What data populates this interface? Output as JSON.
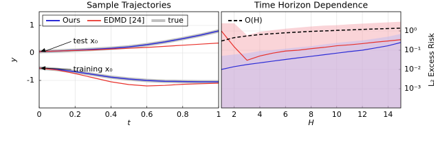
{
  "chart_data": [
    {
      "type": "line",
      "title": "Sample Trajectories",
      "x_label": "t",
      "y_label": "y",
      "x": [
        0,
        0.1,
        0.2,
        0.3,
        0.4,
        0.5,
        0.6,
        0.7,
        0.8,
        0.9,
        1
      ],
      "series": [
        {
          "name": "true",
          "color": "#c0c0c0",
          "width": 5,
          "trajectories": [
            [
              0.05,
              0.07,
              0.1,
              0.13,
              0.17,
              0.22,
              0.3,
              0.4,
              0.52,
              0.65,
              0.8
            ],
            [
              -0.55,
              -0.6,
              -0.68,
              -0.78,
              -0.88,
              -0.95,
              -1.0,
              -1.03,
              -1.04,
              -1.05,
              -1.05
            ]
          ]
        },
        {
          "name": "Ours",
          "color": "#2b2bd6",
          "width": 1.5,
          "trajectories": [
            [
              0.05,
              0.07,
              0.1,
              0.13,
              0.17,
              0.22,
              0.3,
              0.4,
              0.52,
              0.65,
              0.8
            ],
            [
              -0.55,
              -0.6,
              -0.68,
              -0.78,
              -0.88,
              -0.95,
              -1.0,
              -1.03,
              -1.04,
              -1.05,
              -1.05
            ]
          ]
        },
        {
          "name": "EDMD [24]",
          "color": "#e8302a",
          "width": 1.2,
          "trajectories": [
            [
              0.05,
              0.07,
              0.09,
              0.11,
              0.14,
              0.17,
              0.2,
              0.24,
              0.28,
              0.32,
              0.36
            ],
            [
              -0.55,
              -0.62,
              -0.75,
              -0.9,
              -1.05,
              -1.15,
              -1.2,
              -1.18,
              -1.14,
              -1.12,
              -1.1
            ]
          ]
        }
      ],
      "legend_order": [
        1,
        2,
        0
      ],
      "legend": "upper left",
      "legend_frame": true,
      "annotations": [
        {
          "text": "test x₀",
          "xy": [
            0,
            0.05
          ],
          "xytext": [
            0.19,
            0.42
          ]
        },
        {
          "text": "training x₀",
          "xy": [
            0,
            -0.55
          ],
          "xytext": [
            0.19,
            -0.6
          ]
        }
      ],
      "xlim": [
        0,
        1
      ],
      "xticks": [
        0,
        0.2,
        0.4,
        0.6,
        0.8,
        1
      ],
      "ylim": [
        -2,
        1.5
      ],
      "yticks": [
        -1,
        0,
        1
      ],
      "grid": true,
      "y_axis_side": "left"
    },
    {
      "type": "line",
      "title": "Time Horizon Dependence",
      "x_label": "H",
      "y_label": "L₂ Excess Risk",
      "x": [
        1,
        2,
        3,
        4,
        5,
        6,
        7,
        8,
        9,
        10,
        11,
        12,
        13,
        14,
        15
      ],
      "series": [
        {
          "color": "#e8302a",
          "width": 1.2,
          "values": [
            1.0,
            0.15,
            0.03,
            0.05,
            0.07,
            0.09,
            0.1,
            0.12,
            0.14,
            0.17,
            0.19,
            0.22,
            0.26,
            0.3,
            0.35
          ],
          "band_color": "#f4a0a8",
          "band_lower": [
            0.0001,
            0.0001,
            0.0001,
            0.0001,
            0.0001,
            0.0001,
            0.0001,
            0.0001,
            0.0001,
            0.0001,
            0.0001,
            0.0001,
            0.0001,
            0.0001,
            0.0001
          ],
          "band_upper": [
            2.5,
            2.5,
            0.6,
            0.9,
            1.1,
            1.3,
            1.5,
            1.7,
            1.9,
            2.0,
            2.2,
            2.4,
            2.6,
            2.8,
            3.0
          ]
        },
        {
          "color": "#2b2bd6",
          "width": 1.2,
          "values": [
            0.01,
            0.014,
            0.018,
            0.022,
            0.027,
            0.033,
            0.04,
            0.048,
            0.058,
            0.07,
            0.085,
            0.1,
            0.13,
            0.17,
            0.25
          ],
          "band_color": "#b8b8f4",
          "band_lower": [
            0.0001,
            0.0001,
            0.0001,
            0.0001,
            0.0001,
            0.0001,
            0.0001,
            0.0001,
            0.0001,
            0.0001,
            0.0001,
            0.0001,
            0.0001,
            0.0001,
            0.0001
          ],
          "band_upper": [
            0.05,
            0.06,
            0.07,
            0.09,
            0.1,
            0.12,
            0.14,
            0.16,
            0.2,
            0.24,
            0.28,
            0.32,
            0.4,
            0.5,
            0.7
          ]
        },
        {
          "name": "O(H)",
          "color": "#000000",
          "width": 1.5,
          "dash": true,
          "values": [
            0.3,
            0.45,
            0.55,
            0.65,
            0.72,
            0.8,
            0.87,
            0.95,
            1.0,
            1.07,
            1.13,
            1.2,
            1.27,
            1.33,
            1.4
          ]
        }
      ],
      "legend": "upper left",
      "legend_frame": false,
      "xlim": [
        1,
        15
      ],
      "xticks": [
        2,
        4,
        6,
        8,
        10,
        12,
        14
      ],
      "ylim": [
        0.0001,
        10
      ],
      "log_y": true,
      "yticks": [
        {
          "value": 1,
          "label": "10⁰"
        },
        {
          "value": 0.1,
          "label": "10⁻¹"
        },
        {
          "value": 0.01,
          "label": "10⁻²"
        },
        {
          "value": 0.001,
          "label": "10⁻³"
        }
      ],
      "grid": true,
      "y_axis_side": "right"
    }
  ]
}
